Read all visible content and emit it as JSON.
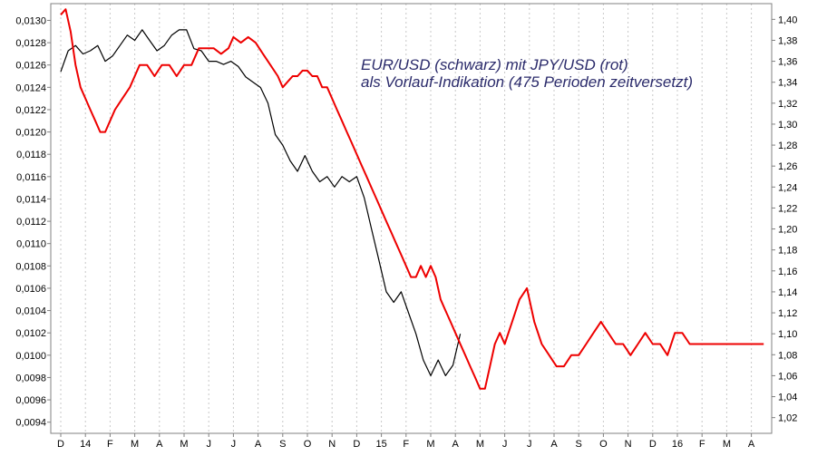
{
  "chart_data": {
    "type": "line",
    "title": "",
    "xlabel": "",
    "ylabel_left": "",
    "ylabel_right": "",
    "annotation": [
      "EUR/USD (schwarz) mit JPY/USD (rot)",
      "als Vorlauf-Indikation (475 Perioden zeitversetzt)"
    ],
    "x_tick_labels": [
      "D",
      "14",
      "F",
      "M",
      "A",
      "M",
      "J",
      "J",
      "A",
      "S",
      "O",
      "N",
      "D",
      "15",
      "F",
      "M",
      "A",
      "M",
      "J",
      "J",
      "A",
      "S",
      "O",
      "N",
      "D",
      "16",
      "F",
      "M",
      "A"
    ],
    "y_left": {
      "range": [
        0.0093,
        0.01315
      ],
      "ticks": [
        "0,0094",
        "0,0096",
        "0,0098",
        "0,0100",
        "0,0102",
        "0,0104",
        "0,0106",
        "0,0108",
        "0,0110",
        "0,0112",
        "0,0114",
        "0,0116",
        "0,0118",
        "0,0120",
        "0,0122",
        "0,0124",
        "0,0126",
        "0,0128",
        "0,0130"
      ]
    },
    "y_right": {
      "range": [
        1.005,
        1.415
      ],
      "ticks": [
        "1,02",
        "1,04",
        "1,06",
        "1,08",
        "1,10",
        "1,12",
        "1,14",
        "1,16",
        "1,18",
        "1,20",
        "1,22",
        "1,24",
        "1,26",
        "1,28",
        "1,30",
        "1,32",
        "1,34",
        "1,36",
        "1,38",
        "1,40"
      ]
    },
    "grid": "vertical dotted at month ticks",
    "series": [
      {
        "name": "EUR/USD (schwarz)",
        "axis": "right",
        "color": "#000000",
        "x": [
          0,
          0.3,
          0.6,
          0.9,
          1.2,
          1.5,
          1.8,
          2.1,
          2.4,
          2.7,
          3.0,
          3.3,
          3.6,
          3.9,
          4.2,
          4.5,
          4.8,
          5.1,
          5.4,
          5.7,
          6.0,
          6.3,
          6.6,
          6.9,
          7.2,
          7.5,
          7.8,
          8.1,
          8.4,
          8.7,
          9.0,
          9.3,
          9.6,
          9.9,
          10.2,
          10.5,
          10.8,
          11.1,
          11.4,
          11.7,
          12.0,
          12.3,
          12.6,
          12.9,
          13.2,
          13.5,
          13.8,
          14.1,
          14.4,
          14.7,
          15.0,
          15.3,
          15.6,
          15.9,
          16.2
        ],
        "values": [
          1.35,
          1.37,
          1.375,
          1.367,
          1.37,
          1.375,
          1.36,
          1.365,
          1.375,
          1.385,
          1.38,
          1.39,
          1.38,
          1.37,
          1.375,
          1.385,
          1.39,
          1.39,
          1.372,
          1.37,
          1.36,
          1.36,
          1.357,
          1.36,
          1.355,
          1.345,
          1.34,
          1.335,
          1.32,
          1.29,
          1.28,
          1.265,
          1.255,
          1.27,
          1.255,
          1.245,
          1.25,
          1.24,
          1.25,
          1.245,
          1.25,
          1.23,
          1.2,
          1.17,
          1.14,
          1.13,
          1.14,
          1.12,
          1.1,
          1.075,
          1.06,
          1.075,
          1.06,
          1.07,
          1.1
        ]
      },
      {
        "name": "JPY/USD (rot)",
        "axis": "left",
        "color": "#ee0000",
        "x": [
          0,
          0.2,
          0.4,
          0.6,
          0.8,
          1.0,
          1.2,
          1.4,
          1.6,
          1.8,
          2.0,
          2.2,
          2.5,
          2.8,
          3.0,
          3.2,
          3.5,
          3.8,
          4.1,
          4.4,
          4.7,
          5.0,
          5.3,
          5.6,
          5.9,
          6.2,
          6.5,
          6.8,
          7.0,
          7.3,
          7.6,
          7.9,
          8.2,
          8.5,
          8.8,
          9.0,
          9.2,
          9.4,
          9.6,
          9.8,
          10.0,
          10.2,
          10.4,
          10.6,
          10.8,
          11.0,
          11.2,
          11.4,
          11.6,
          11.8,
          12.0,
          12.2,
          12.4,
          12.6,
          12.8,
          13.0,
          13.2,
          13.4,
          13.6,
          13.8,
          14.0,
          14.2,
          14.4,
          14.6,
          14.8,
          15.0,
          15.2,
          15.4,
          15.6,
          15.8,
          16.0,
          16.2,
          16.4,
          16.6,
          16.8,
          17.0,
          17.2,
          17.4,
          17.6,
          17.8,
          18.0,
          18.3,
          18.6,
          18.9,
          19.2,
          19.5,
          19.8,
          20.1,
          20.4,
          20.7,
          21.0,
          21.3,
          21.6,
          21.9,
          22.2,
          22.5,
          22.8,
          23.1,
          23.4,
          23.7,
          24.0,
          24.3,
          24.6,
          24.9,
          25.2,
          25.5,
          25.8,
          26.1,
          26.4,
          26.7,
          27.0,
          27.3,
          27.6,
          27.9,
          28.2,
          28.5
        ],
        "values": [
          0.01305,
          0.0131,
          0.0129,
          0.0126,
          0.0124,
          0.0123,
          0.0122,
          0.0121,
          0.012,
          0.012,
          0.0121,
          0.0122,
          0.0123,
          0.0124,
          0.0125,
          0.0126,
          0.0126,
          0.0125,
          0.0126,
          0.0126,
          0.0125,
          0.0126,
          0.0126,
          0.01275,
          0.01275,
          0.01275,
          0.0127,
          0.01275,
          0.01285,
          0.0128,
          0.01285,
          0.0128,
          0.0127,
          0.0126,
          0.0125,
          0.0124,
          0.01245,
          0.0125,
          0.0125,
          0.01255,
          0.01255,
          0.0125,
          0.0125,
          0.0124,
          0.0124,
          0.0123,
          0.0122,
          0.0121,
          0.012,
          0.0119,
          0.0118,
          0.0117,
          0.0116,
          0.0115,
          0.0114,
          0.0113,
          0.0112,
          0.0111,
          0.011,
          0.0109,
          0.0108,
          0.0107,
          0.0107,
          0.0108,
          0.0107,
          0.0108,
          0.0107,
          0.0105,
          0.0104,
          0.0103,
          0.0102,
          0.0101,
          0.01,
          0.0099,
          0.0098,
          0.0097,
          0.0097,
          0.0099,
          0.0101,
          0.0102,
          0.0101,
          0.0103,
          0.0105,
          0.0106,
          0.0103,
          0.0101,
          0.01,
          0.0099,
          0.0099,
          0.01,
          0.01,
          0.0101,
          0.0102,
          0.0103,
          0.0102,
          0.0101,
          0.0101,
          0.01,
          0.0101,
          0.0102,
          0.0101,
          0.0101,
          0.01,
          0.0102,
          0.0102,
          0.0101,
          0.0101,
          0.0101,
          0.0101,
          0.0101,
          0.0101,
          0.0101,
          0.0101,
          0.0101,
          0.0101,
          0.0101
        ]
      }
    ]
  }
}
